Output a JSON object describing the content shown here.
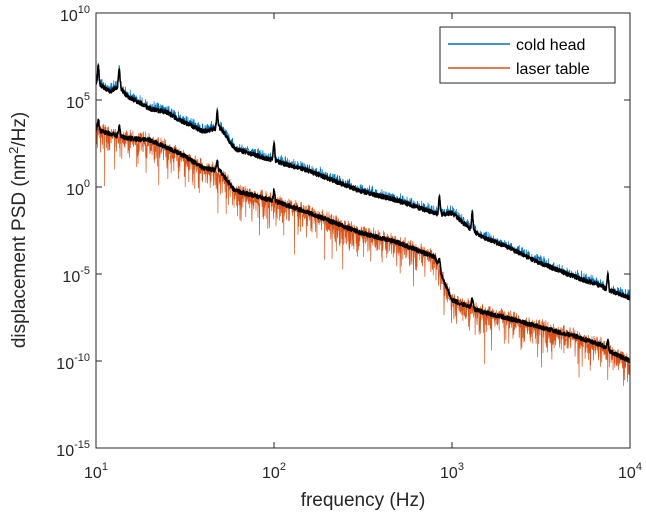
{
  "chart_data": {
    "type": "line",
    "title": "",
    "xlabel": "frequency (Hz)",
    "ylabel": "displacement PSD (nm²/Hz)",
    "ylabel_parts": {
      "main": "displacement PSD (nm",
      "sup": "2",
      "rest": "/Hz)"
    },
    "xscale": "log",
    "yscale": "log",
    "xlim": [
      10,
      10000
    ],
    "ylim": [
      1e-15,
      10000000000.0
    ],
    "x_ticks": [
      {
        "value": 10,
        "base": "10",
        "exp": "1"
      },
      {
        "value": 100,
        "base": "10",
        "exp": "2"
      },
      {
        "value": 1000,
        "base": "10",
        "exp": "3"
      },
      {
        "value": 10000,
        "base": "10",
        "exp": "4"
      }
    ],
    "y_ticks": [
      {
        "value": 10000000000.0,
        "base": "10",
        "exp": "10"
      },
      {
        "value": 100000.0,
        "base": "10",
        "exp": "5"
      },
      {
        "value": 1,
        "base": "10",
        "exp": "0"
      },
      {
        "value": 1e-05,
        "base": "10",
        "exp": "-5"
      },
      {
        "value": 1e-10,
        "base": "10",
        "exp": "-10"
      },
      {
        "value": 1e-15,
        "base": "10",
        "exp": "-15"
      }
    ],
    "grid": false,
    "legend": {
      "position": "top-right"
    },
    "series": [
      {
        "name": "cold head",
        "color": "#0072BD",
        "mean_color": "#000000",
        "noise_decades": 1.3,
        "x": [
          10,
          12,
          13.5,
          15,
          18,
          20,
          25,
          30,
          40,
          50,
          60,
          100,
          150,
          200,
          300,
          500,
          700,
          850,
          1000,
          1300,
          1500,
          2000,
          3000,
          5000,
          7000,
          7500,
          8000,
          10000
        ],
        "log10_y": [
          6.0,
          5.5,
          5.8,
          5.2,
          4.8,
          4.5,
          4.3,
          3.8,
          3.2,
          3.4,
          2.2,
          1.5,
          1.0,
          0.5,
          -0.2,
          -0.8,
          -1.3,
          -1.6,
          -1.5,
          -2.5,
          -2.9,
          -3.4,
          -4.3,
          -5.2,
          -5.7,
          -6.0,
          -6.0,
          -6.4
        ]
      },
      {
        "name": "laser table",
        "color": "#D95319",
        "mean_color": "#000000",
        "noise_decades": 2.0,
        "x": [
          10,
          15,
          20,
          30,
          40,
          50,
          60,
          100,
          150,
          200,
          300,
          500,
          700,
          800,
          900,
          1000,
          1500,
          2000,
          3000,
          5000,
          7000,
          7500,
          10000
        ],
        "log10_y": [
          3.3,
          2.8,
          2.7,
          1.9,
          1.1,
          0.9,
          -0.2,
          -0.8,
          -1.4,
          -1.9,
          -2.6,
          -3.2,
          -3.8,
          -4.0,
          -5.4,
          -6.5,
          -7.2,
          -7.5,
          -8.0,
          -8.6,
          -9.1,
          -9.4,
          -10.0
        ]
      }
    ],
    "peaks": [
      {
        "x": 10.3,
        "log10_y": 7.4
      },
      {
        "x": 13.5,
        "log10_y": 6.5
      },
      {
        "x": 48,
        "log10_y": 4.7
      },
      {
        "x": 100,
        "log10_y": 1.8
      },
      {
        "x": 850,
        "log10_y": -1.0
      },
      {
        "x": 1300,
        "log10_y": -2.0
      },
      {
        "x": 7500,
        "log10_y": -4.0
      }
    ]
  }
}
